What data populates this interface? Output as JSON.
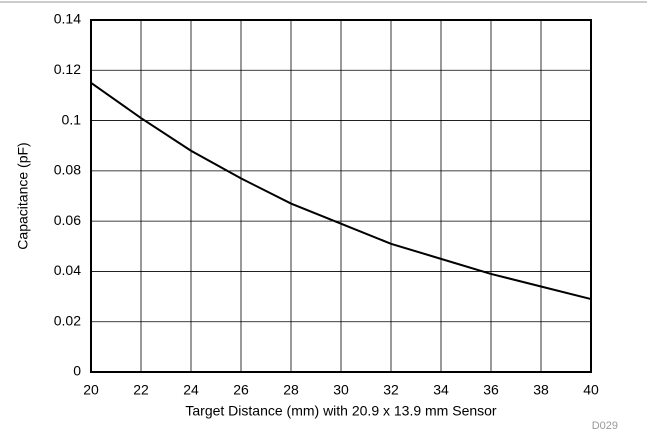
{
  "chart_data": {
    "type": "line",
    "x_label": "Target Distance (mm) with 20.9 x 13.9 mm Sensor",
    "y_label": "Capacitance (pF)",
    "annotation": "D029",
    "x": [
      20,
      22,
      24,
      26,
      28,
      30,
      32,
      34,
      36,
      38,
      40
    ],
    "series": [
      {
        "color": "#000000",
        "values": [
          0.115,
          0.101,
          0.088,
          0.077,
          0.067,
          0.059,
          0.051,
          0.045,
          0.039,
          0.034,
          0.029
        ]
      }
    ],
    "xlim": [
      20,
      40
    ],
    "xticks": [
      20,
      22,
      24,
      26,
      28,
      30,
      32,
      34,
      36,
      38,
      40
    ],
    "ylim": [
      0,
      0.14
    ],
    "yticks": [
      0,
      0.02,
      0.04,
      0.06,
      0.08,
      0.1,
      0.12,
      0.14
    ],
    "grid": true
  }
}
